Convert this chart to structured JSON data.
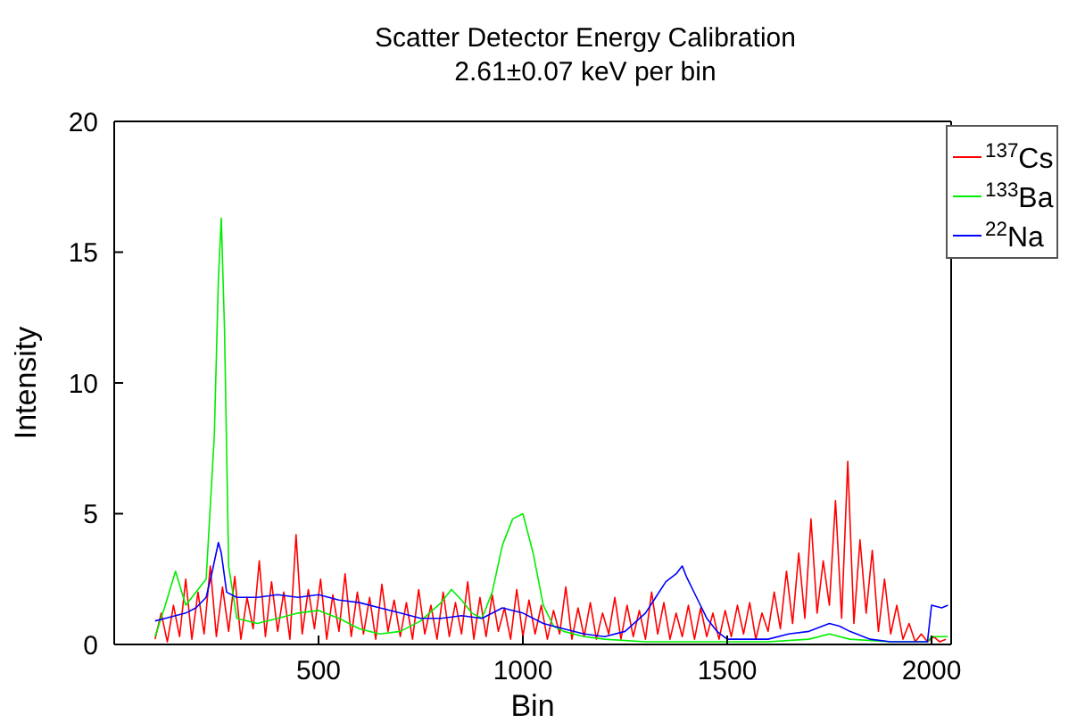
{
  "chart_data": {
    "type": "line",
    "title": "Scatter Detector Energy Calibration",
    "subtitle": "2.61±0.07 keV per bin",
    "xlabel": "Bin",
    "ylabel": "Intensity",
    "xlim": [
      0,
      2048
    ],
    "xticks": [
      500,
      1000,
      1500,
      2000
    ],
    "ylim": [
      0,
      20
    ],
    "yticks": [
      0,
      5,
      10,
      15,
      20
    ],
    "legend": "top right",
    "grid": false,
    "series": [
      {
        "name": "$^{137}$Cs",
        "color": "#ff0000",
        "x": [
          100,
          115,
          130,
          145,
          160,
          175,
          190,
          205,
          220,
          235,
          250,
          265,
          280,
          295,
          310,
          325,
          340,
          355,
          370,
          385,
          400,
          415,
          430,
          445,
          460,
          475,
          490,
          505,
          520,
          535,
          550,
          565,
          580,
          595,
          610,
          625,
          640,
          655,
          670,
          685,
          700,
          715,
          730,
          745,
          760,
          775,
          790,
          805,
          820,
          835,
          850,
          865,
          880,
          895,
          910,
          925,
          940,
          955,
          970,
          985,
          1000,
          1015,
          1030,
          1045,
          1060,
          1075,
          1090,
          1105,
          1120,
          1135,
          1150,
          1165,
          1180,
          1195,
          1210,
          1225,
          1240,
          1255,
          1270,
          1285,
          1300,
          1315,
          1330,
          1345,
          1360,
          1375,
          1390,
          1405,
          1420,
          1435,
          1450,
          1465,
          1480,
          1495,
          1510,
          1525,
          1540,
          1555,
          1570,
          1585,
          1600,
          1615,
          1630,
          1645,
          1660,
          1675,
          1690,
          1705,
          1720,
          1735,
          1750,
          1765,
          1780,
          1795,
          1810,
          1825,
          1840,
          1855,
          1870,
          1885,
          1900,
          1915,
          1930,
          1945,
          1960,
          1975,
          1990,
          2005,
          2020,
          2035
        ],
        "values": [
          0.2,
          1.2,
          0.1,
          1.5,
          0.3,
          2.5,
          0.2,
          2.0,
          0.4,
          3.0,
          0.3,
          2.2,
          0.5,
          2.6,
          0.2,
          1.8,
          0.6,
          3.2,
          0.3,
          2.4,
          0.5,
          2.0,
          0.2,
          4.2,
          0.4,
          2.1,
          0.6,
          2.5,
          0.2,
          1.9,
          0.5,
          2.7,
          0.3,
          2.0,
          0.4,
          1.8,
          0.2,
          2.3,
          0.5,
          1.7,
          0.3,
          1.6,
          0.2,
          2.1,
          0.4,
          1.5,
          0.2,
          2.0,
          0.3,
          1.6,
          0.4,
          2.4,
          0.2,
          1.8,
          0.3,
          1.9,
          0.5,
          1.4,
          0.2,
          2.1,
          0.3,
          1.7,
          0.4,
          1.5,
          0.2,
          1.3,
          0.4,
          2.2,
          0.2,
          1.4,
          0.3,
          1.6,
          0.2,
          1.2,
          0.4,
          1.8,
          0.2,
          1.5,
          0.3,
          1.3,
          0.2,
          2.0,
          0.4,
          1.6,
          0.2,
          1.2,
          0.3,
          1.5,
          0.2,
          1.4,
          0.3,
          1.2,
          0.2,
          1.3,
          0.3,
          1.5,
          0.4,
          1.6,
          0.2,
          1.2,
          0.5,
          2.0,
          0.6,
          2.8,
          0.8,
          3.5,
          1.0,
          4.8,
          1.2,
          3.2,
          1.5,
          5.5,
          1.0,
          7.0,
          0.8,
          4.0,
          1.2,
          3.6,
          0.5,
          2.5,
          0.4,
          1.5,
          0.2,
          0.8,
          0.1,
          0.4,
          0.1,
          0.3,
          0.1,
          0.2
        ]
      },
      {
        "name": "$^{133}$Ba",
        "color": "#00ee00",
        "x": [
          100,
          125,
          150,
          175,
          200,
          225,
          245,
          255,
          262,
          270,
          280,
          300,
          350,
          400,
          450,
          500,
          550,
          600,
          650,
          700,
          750,
          800,
          825,
          850,
          875,
          900,
          925,
          950,
          975,
          1000,
          1025,
          1050,
          1075,
          1100,
          1150,
          1200,
          1300,
          1400,
          1500,
          1600,
          1700,
          1750,
          1800,
          1900,
          1950,
          1990,
          2000,
          2040
        ],
        "values": [
          0.3,
          1.5,
          2.8,
          1.5,
          2.0,
          2.5,
          8.0,
          14.0,
          16.3,
          12.0,
          3.0,
          1.0,
          0.8,
          1.0,
          1.2,
          1.3,
          1.0,
          0.6,
          0.4,
          0.5,
          0.9,
          1.6,
          2.1,
          1.7,
          1.2,
          1.0,
          2.0,
          3.8,
          4.8,
          5.0,
          3.5,
          1.5,
          0.7,
          0.5,
          0.3,
          0.2,
          0.1,
          0.1,
          0.1,
          0.1,
          0.2,
          0.4,
          0.2,
          0.1,
          0.1,
          0.1,
          0.3,
          0.3
        ]
      },
      {
        "name": "$^{22}$Na",
        "color": "#0000ff",
        "x": [
          100,
          125,
          150,
          175,
          200,
          225,
          240,
          255,
          262,
          275,
          300,
          350,
          400,
          450,
          500,
          550,
          600,
          650,
          700,
          750,
          800,
          850,
          900,
          950,
          975,
          1000,
          1050,
          1100,
          1150,
          1200,
          1250,
          1300,
          1325,
          1350,
          1375,
          1390,
          1400,
          1425,
          1450,
          1475,
          1500,
          1550,
          1600,
          1650,
          1700,
          1750,
          1775,
          1800,
          1850,
          1900,
          1950,
          1990,
          2000,
          2025,
          2040
        ],
        "values": [
          0.9,
          1.0,
          1.1,
          1.2,
          1.4,
          1.8,
          2.8,
          3.9,
          3.5,
          2.0,
          1.8,
          1.8,
          1.9,
          1.8,
          1.9,
          1.7,
          1.6,
          1.4,
          1.2,
          1.0,
          1.0,
          1.1,
          1.0,
          1.4,
          1.3,
          1.2,
          0.8,
          0.6,
          0.4,
          0.3,
          0.5,
          1.2,
          1.8,
          2.4,
          2.7,
          3.0,
          2.6,
          1.8,
          1.0,
          0.5,
          0.2,
          0.2,
          0.2,
          0.4,
          0.5,
          0.8,
          0.7,
          0.5,
          0.2,
          0.1,
          0.1,
          0.1,
          1.5,
          1.4,
          1.5
        ]
      }
    ]
  }
}
